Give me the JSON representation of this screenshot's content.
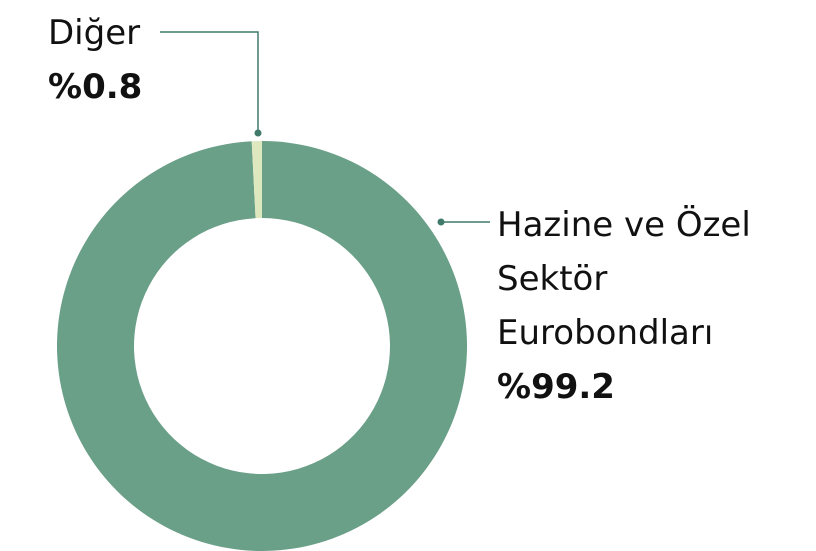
{
  "chart_data": {
    "type": "pie",
    "categories": [
      "Hazine ve Özel Sektör Eurobondları",
      "Diğer"
    ],
    "values": [
      99.2,
      0.8
    ],
    "value_labels": [
      "%99.2",
      "%0.8"
    ],
    "colors": [
      "#6a9f88",
      "#dde8bf"
    ]
  }
}
